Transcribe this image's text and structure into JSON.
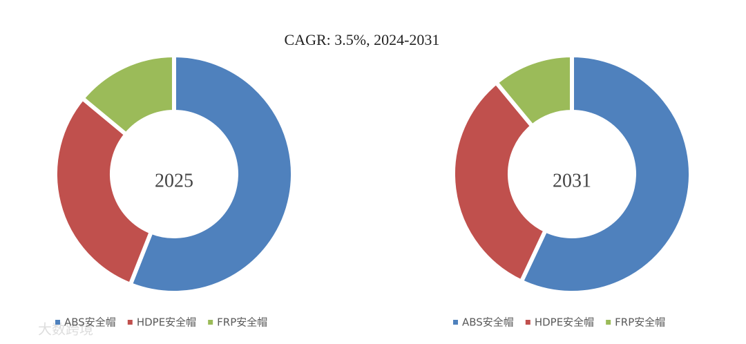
{
  "title": "CAGR:   3.5%, 2024-2031",
  "watermark": "大数跨境",
  "chart_data": [
    {
      "type": "donut",
      "center_label": "2025",
      "categories": [
        "ABS安全帽",
        "HDPE安全帽",
        "FRP安全帽"
      ],
      "values": [
        56,
        30,
        14
      ],
      "colors": [
        "#4f81bd",
        "#c0504d",
        "#9bbb59"
      ]
    },
    {
      "type": "donut",
      "center_label": "2031",
      "categories": [
        "ABS安全帽",
        "HDPE安全帽",
        "FRP安全帽"
      ],
      "values": [
        57,
        32,
        11
      ],
      "colors": [
        "#4f81bd",
        "#c0504d",
        "#9bbb59"
      ]
    }
  ]
}
